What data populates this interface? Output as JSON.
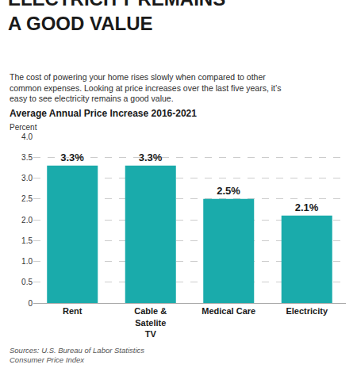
{
  "chart_data": {
    "type": "bar",
    "title": "ELECTRICITY REMAINS\nA GOOD VALUE",
    "subtitle": "The cost of powering your home rises slowly when compared to other\ncommon expenses. Looking at price increases over the last five years, it’s\neasy to see electricity remains a good value.",
    "ylabel": "Percent",
    "annotations": [
      "Average Annual Price Increase 2016-2021",
      "Sources: U.S. Bureau of Labor Statistics\nConsumer Price Index"
    ],
    "categories": [
      "Rent",
      "Cable &\nSatelite\nTV",
      "Medical Care",
      "Electricity"
    ],
    "values": [
      3.3,
      3.3,
      2.5,
      2.1
    ],
    "value_labels": [
      "3.3%",
      "3.3%",
      "2.5%",
      "2.1%"
    ],
    "data_labels": true,
    "color": "#1AABAB",
    "ylim": [
      0,
      4.0
    ],
    "yticks": [
      0,
      0.5,
      {
        "value": 1.0,
        "label": "1.0"
      },
      1.5,
      {
        "value": 2.0,
        "label": "2.0"
      },
      2.5,
      {
        "value": 3.0,
        "label": "3.0"
      },
      3.5,
      {
        "value": 4.0,
        "label": "4.0"
      }
    ],
    "grid": true
  }
}
